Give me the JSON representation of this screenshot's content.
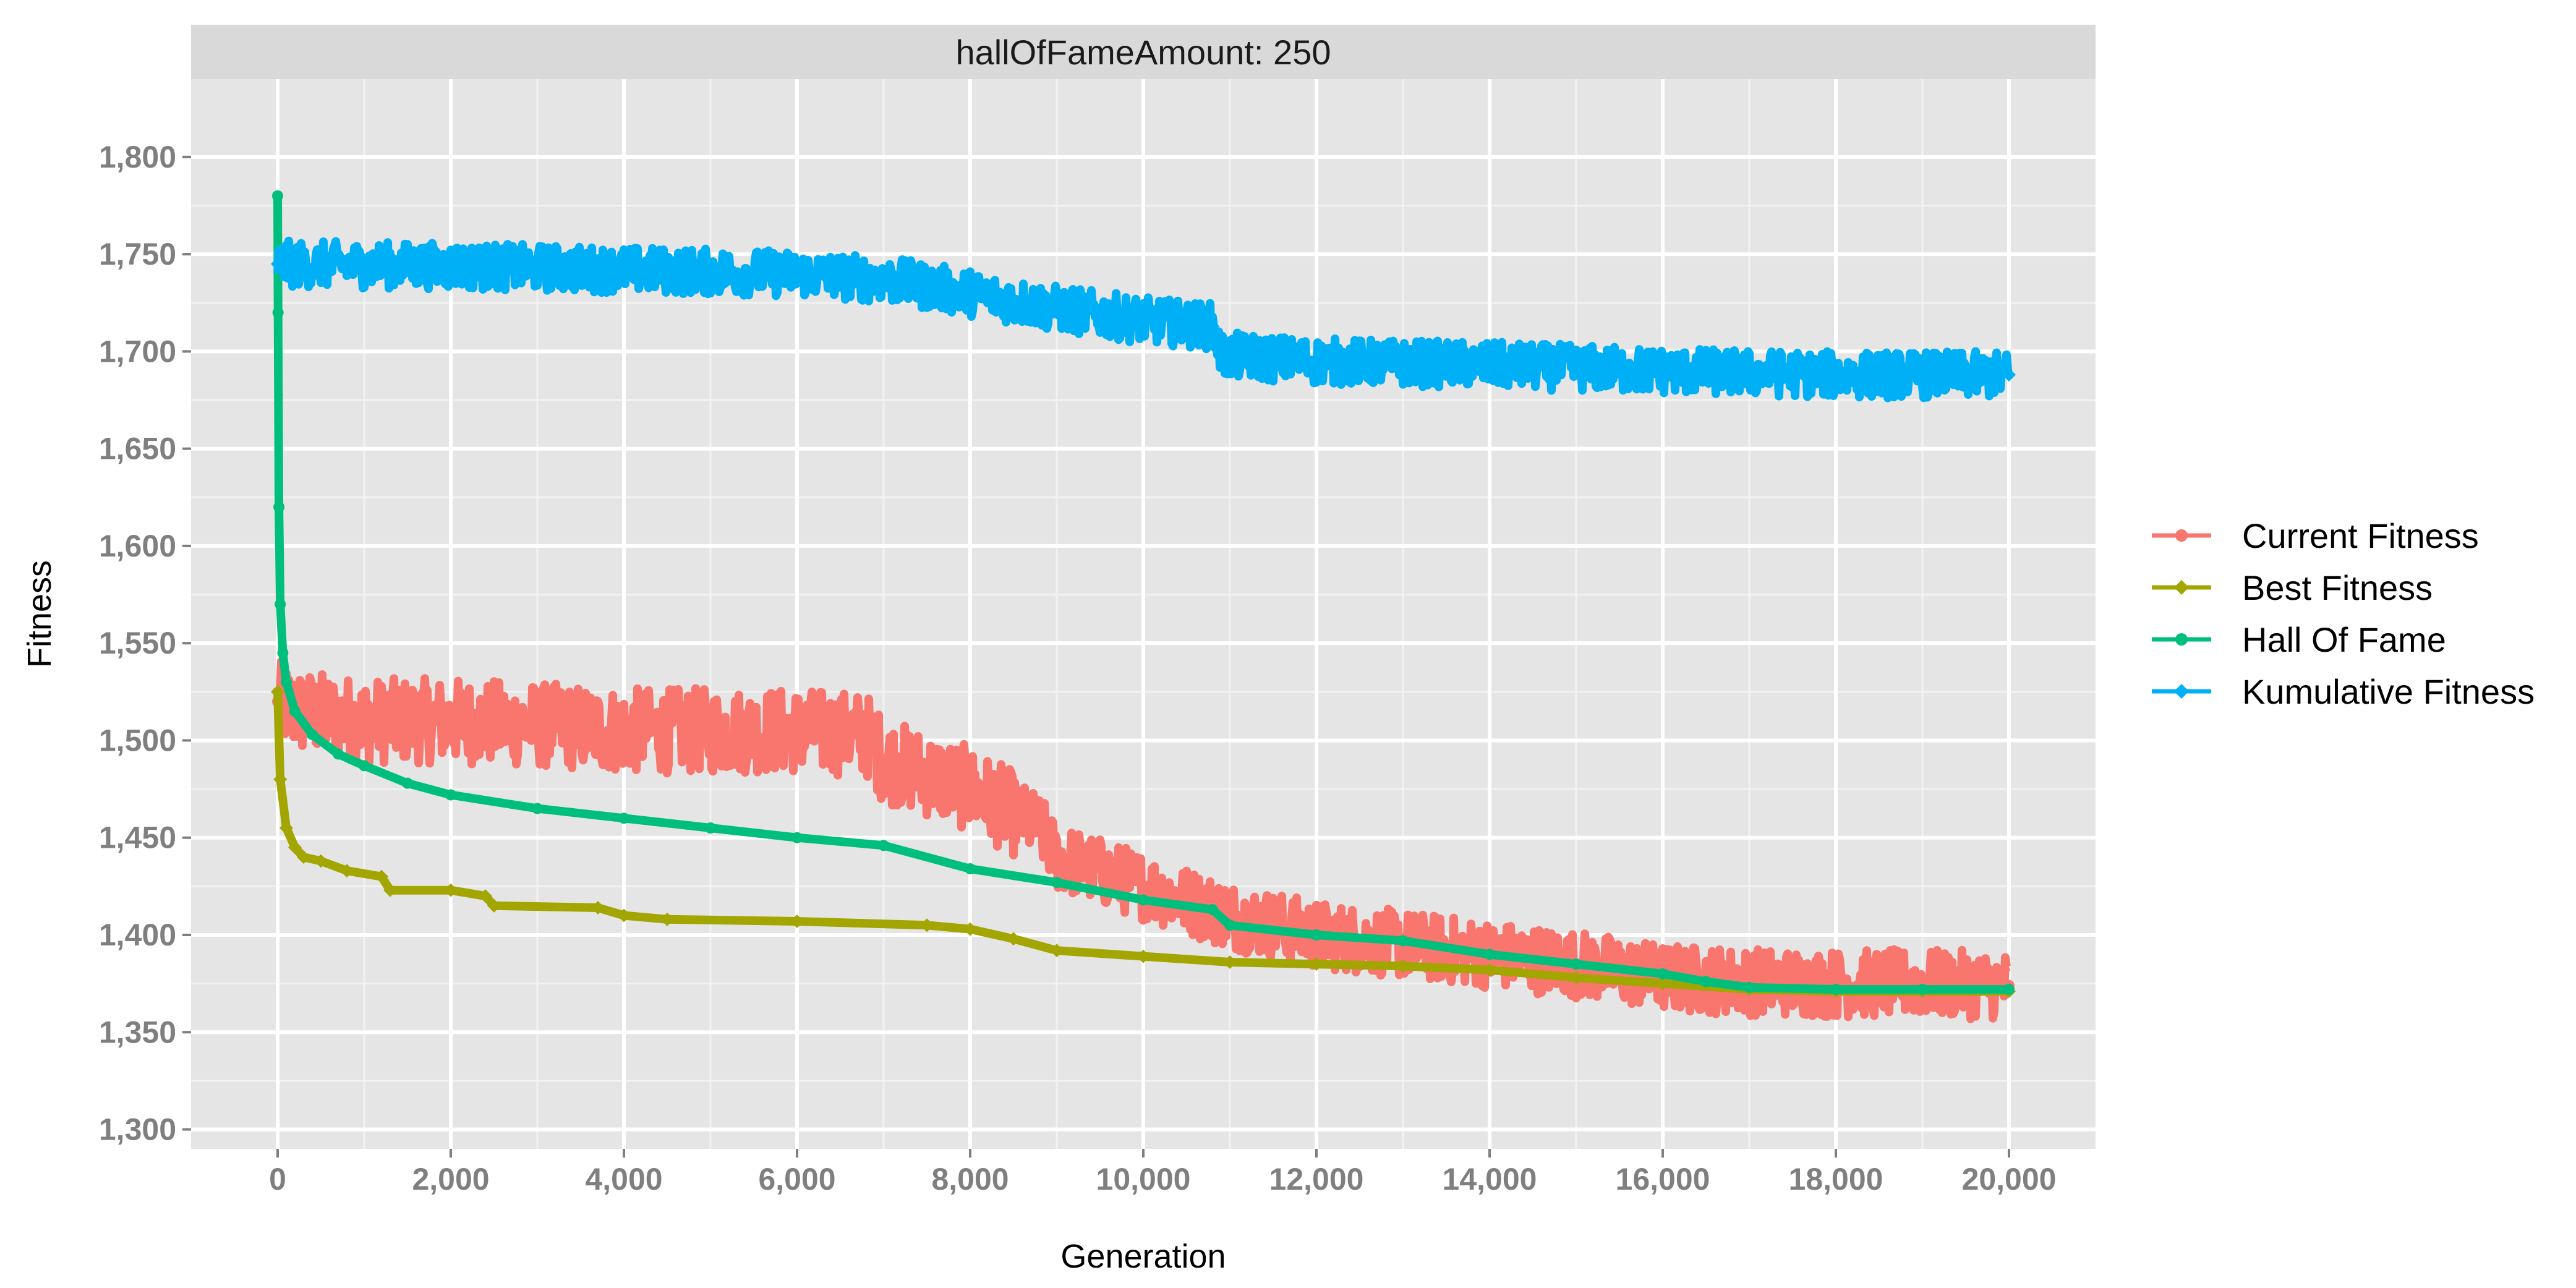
{
  "chart_data": {
    "type": "line",
    "facet_label": "hallOfFameAmount: 250",
    "xlabel": "Generation",
    "ylabel": "Fitness",
    "xlim": [
      -1000,
      21000
    ],
    "ylim": [
      1290,
      1840
    ],
    "x_ticks": [
      0,
      2000,
      4000,
      6000,
      8000,
      10000,
      12000,
      14000,
      16000,
      18000,
      20000
    ],
    "x_tick_labels": [
      "0",
      "2,000",
      "4,000",
      "6,000",
      "8,000",
      "10,000",
      "12,000",
      "14,000",
      "16,000",
      "18,000",
      "20,000"
    ],
    "y_ticks": [
      1300,
      1350,
      1400,
      1450,
      1500,
      1550,
      1600,
      1650,
      1700,
      1750,
      1800
    ],
    "y_tick_labels": [
      "1,300",
      "1,350",
      "1,400",
      "1,450",
      "1,500",
      "1,550",
      "1,600",
      "1,650",
      "1,700",
      "1,750",
      "1,800"
    ],
    "grid": true,
    "legend_position": "right",
    "series": [
      {
        "name": "Current Fitness",
        "color": "#F8766D",
        "marker": "circle",
        "noise": 22,
        "x": [
          0,
          200,
          1000,
          2000,
          3000,
          4000,
          5000,
          6000,
          6800,
          7000,
          8000,
          8800,
          9000,
          10000,
          11000,
          12000,
          13000,
          14000,
          15000,
          16000,
          17000,
          18000,
          19000,
          20000
        ],
        "y": [
          1520,
          1515,
          1510,
          1510,
          1508,
          1505,
          1505,
          1505,
          1503,
          1490,
          1475,
          1455,
          1440,
          1425,
          1410,
          1400,
          1395,
          1390,
          1385,
          1378,
          1376,
          1375,
          1375,
          1374
        ]
      },
      {
        "name": "Best Fitness",
        "color": "#A3A500",
        "marker": "diamond",
        "x": [
          0,
          30,
          100,
          200,
          300,
          500,
          800,
          1200,
          1300,
          2000,
          2400,
          2500,
          3700,
          4000,
          4500,
          6000,
          7500,
          8000,
          8500,
          9000,
          10000,
          11000,
          12000,
          13000,
          14000,
          15000,
          16000,
          17000,
          18000,
          19000,
          20000
        ],
        "y": [
          1525,
          1480,
          1455,
          1445,
          1440,
          1438,
          1433,
          1430,
          1423,
          1423,
          1420,
          1415,
          1414,
          1410,
          1408,
          1407,
          1405,
          1403,
          1398,
          1392,
          1389,
          1386,
          1385,
          1384,
          1382,
          1378,
          1375,
          1372,
          1371,
          1371,
          1371
        ]
      },
      {
        "name": "Hall Of Fame",
        "color": "#00BF7D",
        "marker": "circle",
        "x": [
          0,
          5,
          15,
          30,
          60,
          100,
          200,
          400,
          700,
          1000,
          1500,
          2000,
          3000,
          4000,
          5000,
          6000,
          7000,
          8000,
          9000,
          10000,
          10800,
          11000,
          12000,
          13000,
          14000,
          15000,
          16000,
          16500,
          17000,
          18000,
          19000,
          20000
        ],
        "y": [
          1780,
          1720,
          1620,
          1570,
          1545,
          1530,
          1515,
          1503,
          1493,
          1487,
          1478,
          1472,
          1465,
          1460,
          1455,
          1450,
          1446,
          1434,
          1427,
          1418,
          1413,
          1405,
          1400,
          1397,
          1390,
          1385,
          1380,
          1376,
          1373,
          1372,
          1372,
          1372
        ]
      },
      {
        "name": "Kumulative Fitness",
        "color": "#00B0F6",
        "marker": "diamond",
        "noise": 12,
        "x": [
          0,
          2000,
          4000,
          6000,
          7000,
          8000,
          9000,
          10000,
          10800,
          10900,
          12000,
          14000,
          16000,
          18000,
          20000
        ],
        "y": [
          1745,
          1744,
          1742,
          1740,
          1737,
          1730,
          1722,
          1716,
          1713,
          1698,
          1695,
          1693,
          1690,
          1688,
          1688
        ]
      }
    ]
  }
}
